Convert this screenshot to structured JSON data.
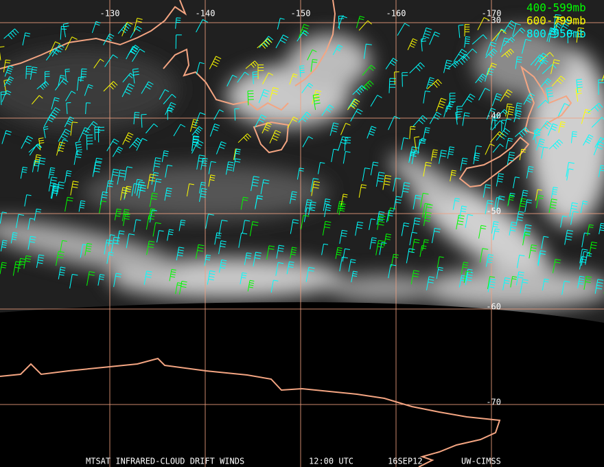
{
  "map": {
    "longitude_labels": [
      -130,
      -140,
      -150,
      -160,
      -170
    ],
    "latitude_labels": [
      -30,
      -40,
      -50,
      -60,
      -70
    ],
    "legend": [
      "400-599mb",
      "600-799mb",
      "800-950mb"
    ],
    "footer": {
      "product": "MTSAT INFRARED-CLOUD DRIFT WINDS",
      "time": "12:00 UTC",
      "date": "16SEP12",
      "source": "UW-CIMSS"
    }
  }
}
